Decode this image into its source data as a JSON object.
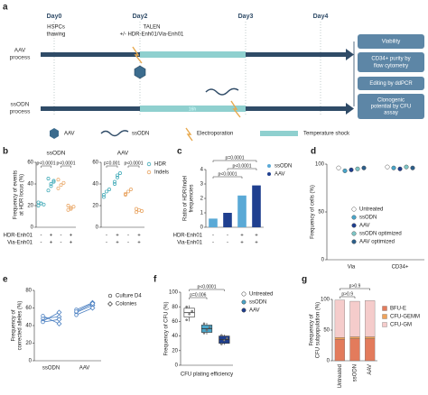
{
  "diagram": {
    "label": "a",
    "days": [
      "Day0",
      "Day2",
      "Day3",
      "Day4"
    ],
    "thawing": [
      "HSPCs",
      "thawing"
    ],
    "treatment": [
      "TALEN",
      "+/- HDR-Enh01/Via-Enh01"
    ],
    "processes": [
      {
        "label": [
          "AAV",
          "process"
        ]
      },
      {
        "label": [
          "ssODN",
          "process"
        ],
        "duration": "16h"
      }
    ],
    "readouts": [
      [
        "Viability"
      ],
      [
        "CD34+ purity by",
        "flow cytometry"
      ],
      [
        "Editing by ddPCR"
      ],
      [
        "Clonogenic",
        "potential by CFU",
        "assay"
      ]
    ],
    "legend": [
      "AAV",
      "ssODN",
      "Electroporation",
      "Temperature shock"
    ]
  },
  "chart_data": [
    {
      "type": "dot",
      "panel": "b",
      "title": "ssODN",
      "ylabel": [
        "Frequency of events",
        "at HDR locus (%)"
      ],
      "ylim": [
        0,
        60
      ],
      "yticks": [
        0,
        20,
        40,
        60
      ],
      "groups": [
        {
          "color": "#3aa7b5",
          "values": [
            20,
            22,
            21,
            23,
            22
          ]
        },
        {
          "color": "#3aa7b5",
          "values": [
            34,
            38,
            42,
            45,
            40,
            43
          ]
        },
        {
          "color": "#e8a25e",
          "values": [
            36,
            39,
            41,
            44
          ]
        },
        {
          "color": "#e8a25e",
          "values": [
            16,
            18,
            19,
            20,
            17
          ]
        }
      ],
      "rows": [
        {
          "label": "HDR-Enh01",
          "signs": [
            "-",
            "+",
            "-",
            "+"
          ]
        },
        {
          "label": "Via-Enh01",
          "signs": [
            "-",
            "+",
            "-",
            "+"
          ]
        }
      ],
      "pvalues": [
        "p<0.0001",
        "p<0.0001"
      ]
    },
    {
      "type": "dot",
      "title": "AAV",
      "ylim": [
        0,
        60
      ],
      "yticks": [
        0,
        20,
        40,
        60
      ],
      "groups": [
        {
          "color": "#3aa7b5",
          "values": [
            30,
            33,
            35,
            28
          ]
        },
        {
          "color": "#3aa7b5",
          "values": [
            42,
            46,
            50,
            40,
            48
          ]
        },
        {
          "color": "#e8a25e",
          "values": [
            30,
            33,
            35,
            31
          ]
        },
        {
          "color": "#e8a25e",
          "values": [
            14,
            16,
            15,
            17
          ]
        }
      ],
      "legend": [
        {
          "name": "HDR",
          "color": "#3aa7b5"
        },
        {
          "name": "Indels",
          "color": "#e8a25e"
        }
      ],
      "rows": [
        {
          "signs": [
            "-",
            "+",
            "-",
            "+"
          ]
        },
        {
          "signs": [
            "-",
            "+",
            "-",
            "+"
          ]
        }
      ],
      "pvalues": [
        "p=0.001",
        "p<0.0001"
      ]
    },
    {
      "type": "bar",
      "panel": "c",
      "ylabel": [
        "Ratio of HDR/Indel",
        "frequencies"
      ],
      "ylim": [
        0,
        4
      ],
      "yticks": [
        0,
        1,
        2,
        3,
        4
      ],
      "values": [
        0.6,
        1.0,
        2.2,
        2.9
      ],
      "colors": [
        "#5aa9d6",
        "#1f3f8f",
        "#5aa9d6",
        "#1f3f8f"
      ],
      "legend": [
        {
          "name": "ssODN",
          "color": "#5aa9d6"
        },
        {
          "name": "AAV",
          "color": "#1f3f8f"
        }
      ],
      "rows": [
        {
          "label": "HDR-Enh01",
          "signs": [
            "-",
            "-",
            "+",
            "+"
          ]
        },
        {
          "label": "Via-Enh01",
          "signs": [
            "-",
            "-",
            "+",
            "+"
          ]
        }
      ],
      "pvalues": [
        "p=0.0001",
        "p<0.0001",
        "p<0.0001"
      ]
    },
    {
      "type": "dotgroup",
      "panel": "d",
      "ylabel": [
        "Frequency of cells (%)"
      ],
      "ylim": [
        0,
        100
      ],
      "yticks": [
        0,
        50,
        100
      ],
      "categories": [
        "Via",
        "CD34+"
      ],
      "series": [
        {
          "name": "Untreated",
          "color": "#ffffff",
          "values": [
            96,
            97
          ]
        },
        {
          "name": "ssODN",
          "color": "#4aa5c9",
          "values": [
            93,
            96
          ]
        },
        {
          "name": "AAV",
          "color": "#1f3f8f",
          "values": [
            94,
            95
          ]
        },
        {
          "name": "ssODN optimized",
          "color": "#7fc6c6",
          "values": [
            95,
            97
          ]
        },
        {
          "name": "AAV optimized",
          "color": "#2c5f8a",
          "values": [
            96,
            96
          ]
        }
      ]
    },
    {
      "type": "paired",
      "panel": "e",
      "ylabel": [
        "Frequency of",
        "corrected alleles (%)"
      ],
      "ylim": [
        0,
        80
      ],
      "yticks": [
        0,
        20,
        40,
        60,
        80
      ],
      "categories": [
        "ssODN",
        "AAV"
      ],
      "color": "#4a7fc1",
      "series": [
        {
          "name": "Culture D4",
          "values": [
            [
              48,
              45,
              51,
              44
            ],
            [
              55,
              58,
              52,
              56
            ]
          ]
        },
        {
          "name": "Colonies",
          "values": [
            [
              50,
              55,
              42,
              47
            ],
            [
              63,
              66,
              60,
              65
            ]
          ]
        }
      ]
    },
    {
      "type": "box",
      "panel": "f",
      "ylabel": [
        "Frequency of CFU (%)"
      ],
      "xlabel": "CFU plating efficiency",
      "ylim": [
        0,
        100
      ],
      "yticks": [
        0,
        20,
        40,
        60,
        80,
        100
      ],
      "series": [
        {
          "name": "Untreated",
          "color": "#ffffff",
          "box": [
            60,
            66,
            72,
            78,
            82
          ],
          "values": [
            62,
            70,
            74,
            80
          ]
        },
        {
          "name": "ssODN",
          "color": "#4aa5c9",
          "box": [
            42,
            45,
            50,
            55,
            58
          ],
          "values": [
            44,
            48,
            52,
            57
          ]
        },
        {
          "name": "AAV",
          "color": "#1f3f8f",
          "box": [
            28,
            30,
            35,
            40,
            42
          ],
          "values": [
            29,
            34,
            37,
            41
          ]
        }
      ],
      "pvalues": [
        "p<0.0001",
        "p=0.006"
      ]
    },
    {
      "type": "stacked_bar",
      "panel": "g",
      "ylabel": [
        "Frequency of",
        "CFU subpopulation (%)"
      ],
      "ylim": [
        0,
        100
      ],
      "yticks": [
        0,
        50,
        100
      ],
      "categories": [
        "Untreated",
        "ssODN",
        "AAV"
      ],
      "series": [
        {
          "name": "BFU-E",
          "color": "#e37b5c",
          "values": [
            35,
            36,
            36
          ]
        },
        {
          "name": "CFU-GEMM",
          "color": "#f0a35b",
          "values": [
            3,
            3,
            3
          ]
        },
        {
          "name": "CFU-GM",
          "color": "#f5cccb",
          "values": [
            61,
            58,
            59
          ]
        }
      ],
      "pvalues": [
        "p>0.9",
        "p>0.9"
      ]
    }
  ]
}
